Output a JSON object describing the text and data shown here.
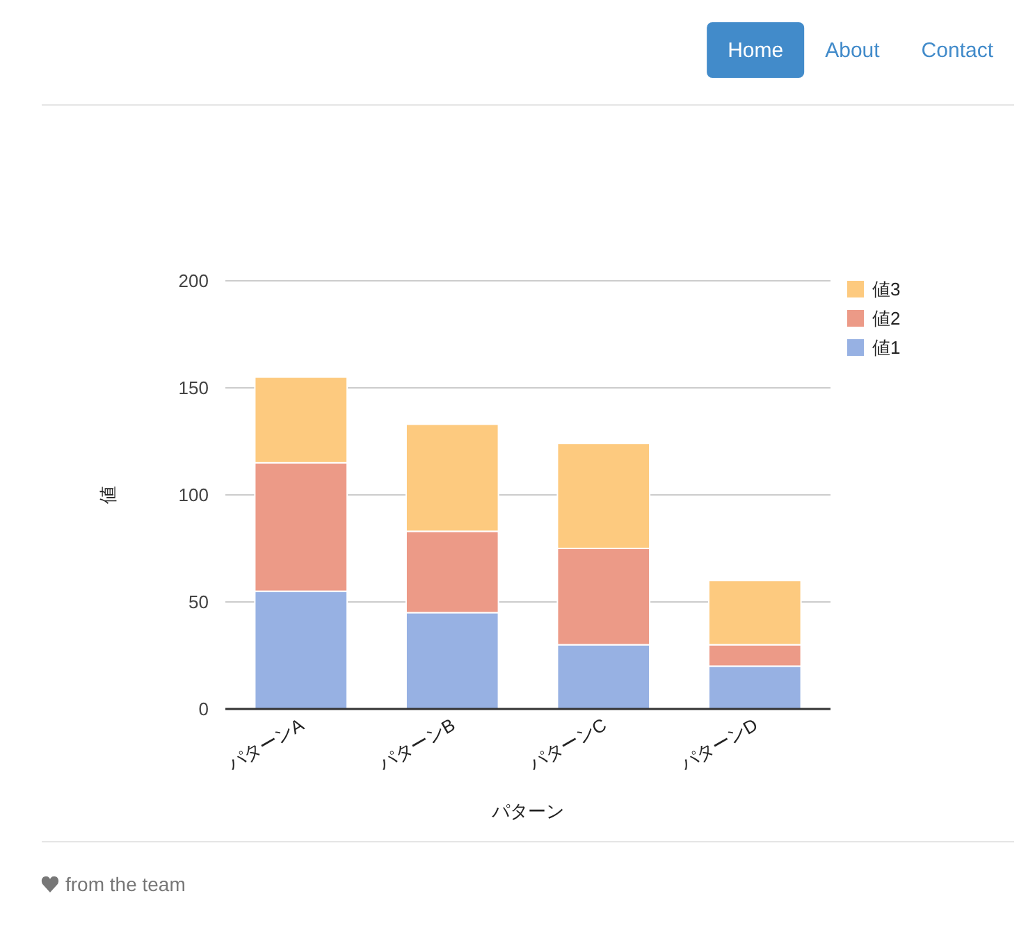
{
  "chart_data": {
    "type": "bar",
    "xlabel": "パターン",
    "ylabel": "値",
    "categories": [
      "パターンA",
      "パターンB",
      "パターンC",
      "パターンD"
    ],
    "series": [
      {
        "name": "値1",
        "color": "#97b1e3",
        "values": [
          55,
          45,
          30,
          20
        ]
      },
      {
        "name": "値2",
        "color": "#ec9a87",
        "values": [
          60,
          38,
          45,
          10
        ]
      },
      {
        "name": "値3",
        "color": "#fdca7f",
        "values": [
          40,
          50,
          49,
          30
        ]
      }
    ],
    "stacked": true,
    "ylim": [
      0,
      200
    ],
    "yticks": [
      0,
      50,
      100,
      150,
      200
    ],
    "grid": "y",
    "legend": "top right",
    "annotations": [
      "Home",
      "About",
      "Contact",
      "from the team"
    ]
  }
}
